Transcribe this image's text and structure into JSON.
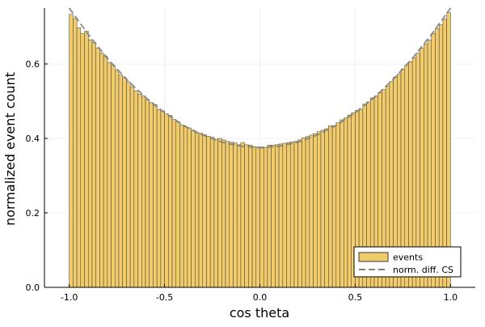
{
  "chart_data": {
    "type": "bar",
    "xlabel": "cos theta",
    "ylabel": "normalized event count",
    "xlim": [
      -1.13,
      1.13
    ],
    "ylim": [
      0,
      0.75
    ],
    "x_ticks": [
      -1.0,
      -0.5,
      0.0,
      0.5,
      1.0
    ],
    "x_tick_labels": [
      "-1.0",
      "-0.5",
      "0.0",
      "0.5",
      "1.0"
    ],
    "y_ticks": [
      0.0,
      0.2,
      0.4,
      0.6
    ],
    "y_tick_labels": [
      "0.0",
      "0.2",
      "0.4",
      "0.6"
    ],
    "grid": true,
    "legend_position": "bottom-right",
    "bin_edges": [
      -1.0,
      1.0
    ],
    "bin_count": 100,
    "series": [
      {
        "name": "events",
        "kind": "histogram",
        "color": "#f2cb6a",
        "edge_color": "#3a3a3a",
        "values": [
          0.733,
          0.722,
          0.697,
          0.681,
          0.688,
          0.665,
          0.657,
          0.643,
          0.629,
          0.621,
          0.604,
          0.596,
          0.583,
          0.57,
          0.563,
          0.552,
          0.539,
          0.528,
          0.519,
          0.514,
          0.504,
          0.496,
          0.491,
          0.477,
          0.474,
          0.466,
          0.462,
          0.451,
          0.444,
          0.436,
          0.431,
          0.428,
          0.421,
          0.415,
          0.414,
          0.41,
          0.406,
          0.403,
          0.398,
          0.4,
          0.396,
          0.392,
          0.39,
          0.388,
          0.383,
          0.389,
          0.383,
          0.382,
          0.378,
          0.377,
          0.377,
          0.376,
          0.382,
          0.382,
          0.383,
          0.385,
          0.387,
          0.389,
          0.391,
          0.392,
          0.396,
          0.402,
          0.405,
          0.409,
          0.413,
          0.418,
          0.422,
          0.426,
          0.434,
          0.434,
          0.442,
          0.45,
          0.455,
          0.463,
          0.469,
          0.475,
          0.477,
          0.492,
          0.498,
          0.509,
          0.514,
          0.523,
          0.531,
          0.54,
          0.553,
          0.565,
          0.572,
          0.586,
          0.596,
          0.606,
          0.616,
          0.629,
          0.642,
          0.653,
          0.664,
          0.682,
          0.695,
          0.705,
          0.72,
          0.738
        ]
      },
      {
        "name": "norm. diff. CS",
        "kind": "line",
        "style": "dashed",
        "color": "#808080",
        "formula": "0.375*(1+x^2)",
        "x": [
          -1.0,
          -0.9,
          -0.8,
          -0.7,
          -0.6,
          -0.5,
          -0.4,
          -0.3,
          -0.2,
          -0.1,
          0.0,
          0.1,
          0.2,
          0.3,
          0.4,
          0.5,
          0.6,
          0.7,
          0.8,
          0.9,
          1.0
        ],
        "y": [
          0.75,
          0.679,
          0.615,
          0.559,
          0.51,
          0.469,
          0.435,
          0.409,
          0.39,
          0.379,
          0.375,
          0.379,
          0.39,
          0.409,
          0.435,
          0.469,
          0.51,
          0.559,
          0.615,
          0.679,
          0.75
        ]
      }
    ]
  }
}
